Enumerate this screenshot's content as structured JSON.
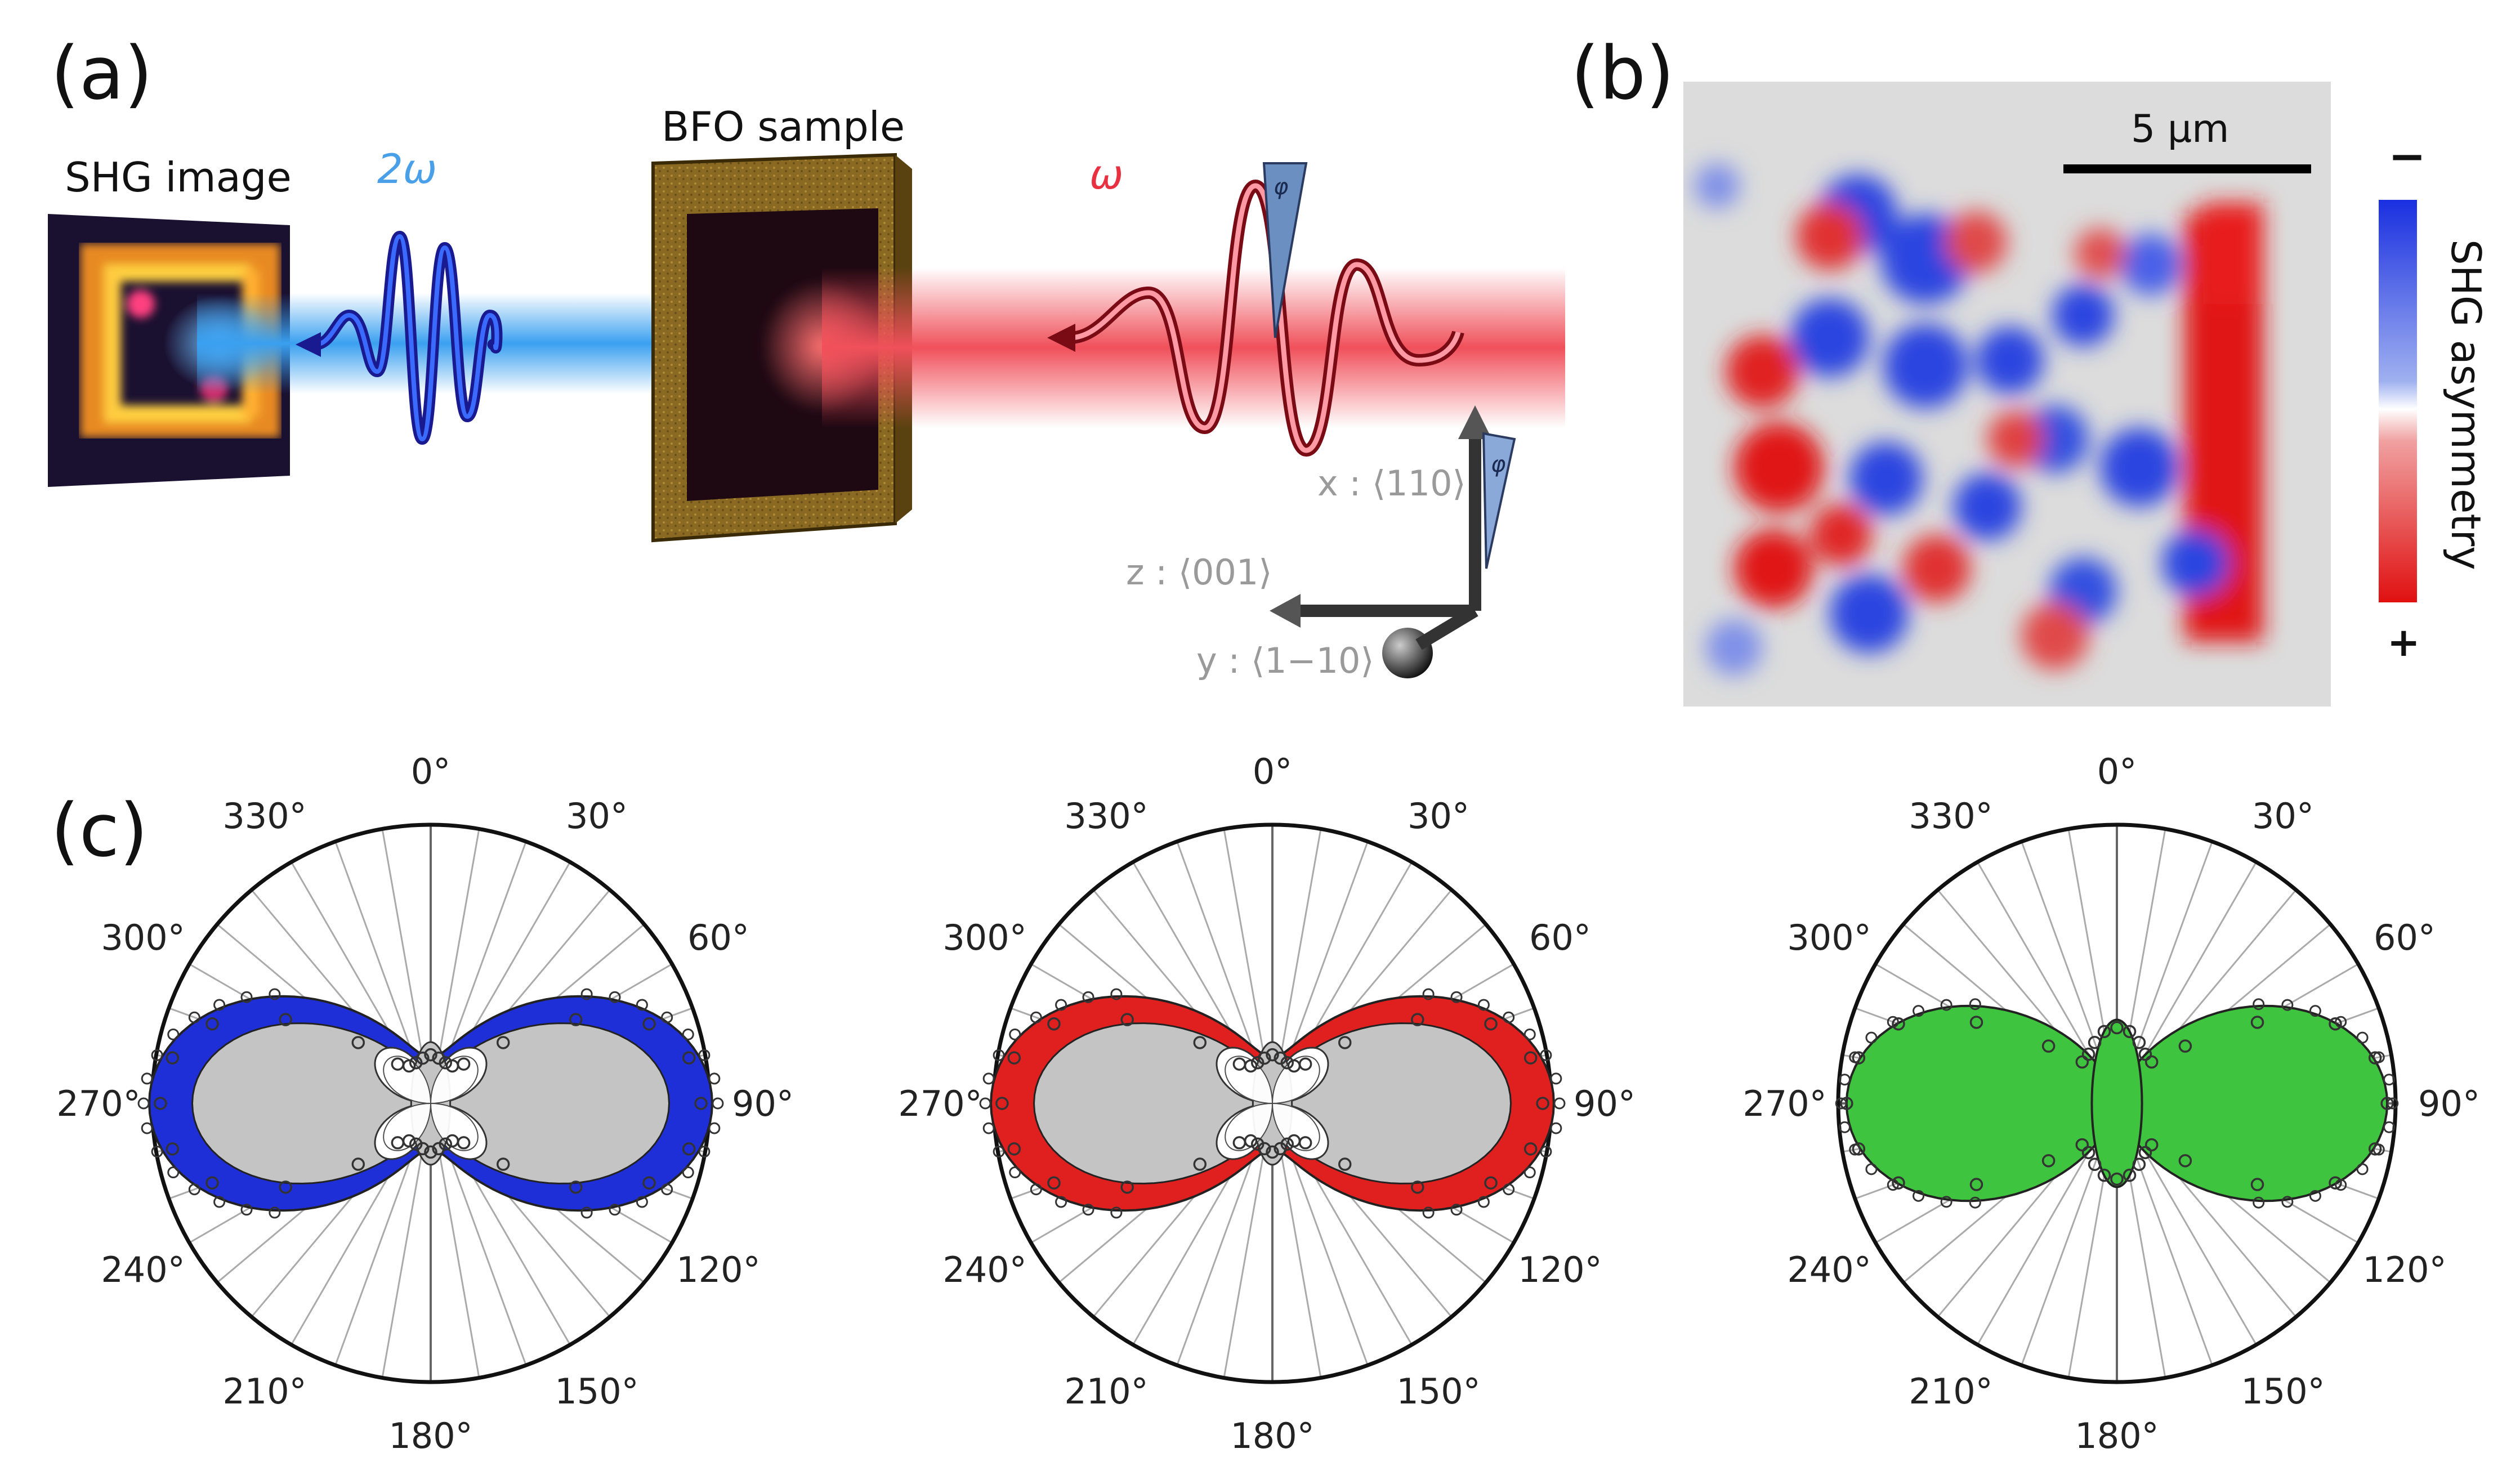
{
  "panels": {
    "a": {
      "label": "(a)",
      "shg_image_label": "SHG image",
      "two_omega_label": "2ω",
      "sample_label": "BFO sample",
      "omega_label": "ω",
      "phi_label": "φ",
      "axis_x": "x : ⟨110⟩",
      "axis_z": "z : ⟨001⟩",
      "axis_y": "y : ⟨1−10⟩"
    },
    "b": {
      "label": "(b)",
      "scale_bar": "5 μm",
      "colorbar_title": "SHG asymmetry",
      "colorbar_top": "−",
      "colorbar_bottom": "+"
    },
    "c": {
      "label": "(c)",
      "angle_labels": [
        "0°",
        "30°",
        "60°",
        "90°",
        "120°",
        "150°",
        "180°",
        "210°",
        "240°",
        "270°",
        "300°",
        "330°"
      ]
    }
  },
  "colors": {
    "blue_fill": "#1f2fd8",
    "red_fill": "#e01f1f",
    "green_fill": "#3ec43e",
    "gray_fill": "#c4c4c4",
    "shg_blue": "#3aa0f0",
    "laser_red": "#f0505a"
  },
  "chart_data": [
    {
      "type": "polar",
      "title": "",
      "theta_deg": [
        0,
        10,
        20,
        30,
        40,
        50,
        60,
        70,
        80,
        90,
        100,
        110,
        120,
        130,
        140,
        150,
        160,
        170,
        180,
        190,
        200,
        210,
        220,
        230,
        240,
        250,
        260,
        270,
        280,
        290,
        300,
        310,
        320,
        330,
        340,
        350
      ],
      "measured_r": [
        0.18,
        0.17,
        0.16,
        0.16,
        0.19,
        0.35,
        0.62,
        0.86,
        0.97,
        1.0,
        0.97,
        0.86,
        0.62,
        0.35,
        0.19,
        0.16,
        0.16,
        0.17,
        0.18,
        0.17,
        0.16,
        0.16,
        0.19,
        0.35,
        0.62,
        0.86,
        0.97,
        1.0,
        0.97,
        0.86,
        0.62,
        0.35,
        0.19,
        0.16,
        0.16,
        0.17
      ],
      "series": [
        {
          "name": "blue domain fit",
          "color": "#1f2fd8"
        },
        {
          "name": "gray component",
          "color": "#c4c4c4"
        },
        {
          "name": "white component",
          "color": "#ffffff"
        },
        {
          "name": "measured",
          "marker": "open circle"
        }
      ]
    },
    {
      "type": "polar",
      "title": "",
      "theta_deg": [
        0,
        10,
        20,
        30,
        40,
        50,
        60,
        70,
        80,
        90,
        100,
        110,
        120,
        130,
        140,
        150,
        160,
        170,
        180,
        190,
        200,
        210,
        220,
        230,
        240,
        250,
        260,
        270,
        280,
        290,
        300,
        310,
        320,
        330,
        340,
        350
      ],
      "measured_r": [
        0.18,
        0.17,
        0.16,
        0.16,
        0.19,
        0.35,
        0.62,
        0.86,
        0.97,
        1.0,
        0.97,
        0.86,
        0.62,
        0.35,
        0.19,
        0.16,
        0.16,
        0.17,
        0.18,
        0.17,
        0.16,
        0.16,
        0.19,
        0.35,
        0.62,
        0.86,
        0.97,
        1.0,
        0.97,
        0.86,
        0.62,
        0.35,
        0.19,
        0.16,
        0.16,
        0.17
      ],
      "series": [
        {
          "name": "red domain fit",
          "color": "#e01f1f"
        },
        {
          "name": "gray component",
          "color": "#c4c4c4"
        },
        {
          "name": "white component",
          "color": "#ffffff"
        },
        {
          "name": "measured",
          "marker": "open circle"
        }
      ]
    },
    {
      "type": "polar",
      "title": "",
      "theta_deg": [
        0,
        10,
        20,
        30,
        40,
        50,
        60,
        70,
        80,
        90,
        100,
        110,
        120,
        130,
        140,
        150,
        160,
        170,
        180,
        190,
        200,
        210,
        220,
        230,
        240,
        250,
        260,
        270,
        280,
        290,
        300,
        310,
        320,
        330,
        340,
        350
      ],
      "measured_r": [
        0.28,
        0.27,
        0.24,
        0.21,
        0.2,
        0.33,
        0.6,
        0.86,
        0.97,
        1.0,
        0.97,
        0.86,
        0.6,
        0.33,
        0.2,
        0.21,
        0.24,
        0.27,
        0.28,
        0.27,
        0.24,
        0.21,
        0.2,
        0.33,
        0.6,
        0.86,
        0.97,
        1.0,
        0.97,
        0.86,
        0.6,
        0.33,
        0.2,
        0.21,
        0.24,
        0.27
      ],
      "series": [
        {
          "name": "sum fit",
          "color": "#3ec43e"
        },
        {
          "name": "measured",
          "marker": "open circle"
        }
      ]
    }
  ]
}
